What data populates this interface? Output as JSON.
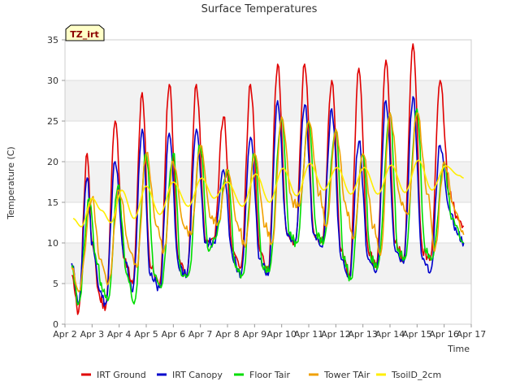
{
  "chart_data": {
    "type": "line",
    "title": "Surface Temperatures",
    "xlabel": "Time",
    "ylabel": "Temperature (C)",
    "site_label": "TZ_irt",
    "ylim": [
      0,
      35
    ],
    "xlim": [
      0,
      15
    ],
    "y_ticks": [
      0,
      5,
      10,
      15,
      20,
      25,
      30,
      35
    ],
    "x_ticks": [
      "Apr 2",
      "Apr 3",
      "Apr 4",
      "Apr 5",
      "Apr 6",
      "Apr 7",
      "Apr 8",
      "Apr 9",
      "Apr 10",
      "Apr 11",
      "Apr 12",
      "Apr 13",
      "Apr 14",
      "Apr 15",
      "Apr 16",
      "Apr 17"
    ],
    "grid": true,
    "legend_position": "bottom",
    "series": [
      {
        "name": "IRT Ground",
        "color": "#e00000",
        "x": [
          0.25,
          0.5,
          0.82,
          1.0,
          1.3,
          1.5,
          1.85,
          2.2,
          2.5,
          2.85,
          3.15,
          3.5,
          3.85,
          4.2,
          4.5,
          4.85,
          5.2,
          5.5,
          5.85,
          6.2,
          6.5,
          6.85,
          7.2,
          7.5,
          7.85,
          8.2,
          8.5,
          8.85,
          9.2,
          9.5,
          9.85,
          10.2,
          10.5,
          10.85,
          11.2,
          11.5,
          11.85,
          12.2,
          12.5,
          12.85,
          13.2,
          13.5,
          13.85,
          14.2,
          14.5,
          14.72
        ],
        "y": [
          6,
          1.5,
          21,
          10,
          3,
          2,
          25,
          8,
          5,
          28.5,
          7,
          5,
          29.5,
          8,
          6,
          29.5,
          10,
          10.5,
          25.5,
          9,
          7,
          29.5,
          9,
          6.5,
          32,
          11,
          10,
          32,
          11,
          10,
          30,
          9,
          6,
          31.5,
          9,
          7,
          32.5,
          10,
          8,
          34.5,
          9,
          8,
          30,
          16,
          13,
          12
        ]
      },
      {
        "name": "IRT Canopy",
        "color": "#0000cc",
        "x": [
          0.25,
          0.5,
          0.82,
          1.0,
          1.3,
          1.5,
          1.85,
          2.2,
          2.5,
          2.85,
          3.15,
          3.5,
          3.85,
          4.2,
          4.5,
          4.85,
          5.2,
          5.5,
          5.85,
          6.2,
          6.5,
          6.85,
          7.2,
          7.5,
          7.85,
          8.2,
          8.5,
          8.85,
          9.2,
          9.5,
          9.85,
          10.2,
          10.5,
          10.85,
          11.2,
          11.5,
          11.85,
          12.2,
          12.5,
          12.85,
          13.2,
          13.5,
          13.85,
          14.2,
          14.5,
          14.72
        ],
        "y": [
          7.5,
          2.5,
          18,
          10,
          4,
          2.5,
          20,
          8,
          4,
          24,
          6,
          4.5,
          23.5,
          7,
          6,
          24,
          10,
          10,
          19,
          8,
          6,
          23,
          8,
          6,
          27.5,
          11,
          10,
          27,
          11,
          9.5,
          26.5,
          8,
          5.5,
          22.5,
          8,
          6.5,
          27.5,
          9,
          7.5,
          28,
          8,
          6.5,
          22,
          14,
          11,
          10
        ]
      },
      {
        "name": "Floor Tair",
        "color": "#00dd00",
        "x": [
          0.25,
          0.5,
          0.9,
          1.15,
          1.4,
          1.6,
          1.95,
          2.3,
          2.55,
          3.0,
          3.3,
          3.55,
          4.0,
          4.3,
          4.55,
          5.0,
          5.3,
          5.55,
          6.0,
          6.3,
          6.55,
          7.0,
          7.3,
          7.55,
          8.0,
          8.3,
          8.55,
          9.0,
          9.3,
          9.55,
          10.0,
          10.3,
          10.55,
          11.0,
          11.3,
          11.55,
          12.0,
          12.3,
          12.55,
          13.0,
          13.3,
          13.55,
          14.0,
          14.3,
          14.72
        ],
        "y": [
          7,
          2.5,
          15.5,
          8,
          4,
          3,
          17,
          6,
          2.5,
          21,
          6,
          4.5,
          21,
          6,
          6,
          22,
          9,
          10.5,
          19,
          7,
          6,
          21,
          7,
          6.5,
          25.5,
          11,
          10,
          25,
          11,
          10,
          24,
          8,
          5.5,
          21,
          8,
          7,
          26,
          9,
          8,
          26.5,
          9,
          8,
          19.5,
          13,
          10
        ]
      },
      {
        "name": "Tower TAir",
        "color": "#f0a000",
        "x": [
          0.25,
          0.5,
          1.0,
          1.3,
          1.6,
          2.0,
          2.4,
          2.65,
          3.0,
          3.4,
          3.65,
          4.0,
          4.4,
          4.65,
          5.0,
          5.4,
          5.65,
          6.0,
          6.4,
          6.65,
          7.0,
          7.4,
          7.65,
          8.0,
          8.4,
          8.65,
          9.0,
          9.4,
          9.65,
          10.0,
          10.4,
          10.65,
          11.0,
          11.4,
          11.65,
          12.0,
          12.4,
          12.65,
          13.0,
          13.4,
          13.65,
          14.0,
          14.4,
          14.72
        ],
        "y": [
          7,
          4,
          15.5,
          8,
          5,
          16.5,
          9,
          7,
          21,
          12,
          9,
          20,
          12,
          11,
          22,
          13,
          12.5,
          19,
          12,
          9.5,
          21,
          12,
          10,
          25.5,
          15,
          14.5,
          25,
          16,
          12,
          24,
          14,
          10.5,
          21,
          12,
          8.5,
          26,
          15,
          13.5,
          26,
          16,
          9,
          20,
          14,
          11
        ]
      },
      {
        "name": "TsoilD_2cm",
        "color": "#ffee00",
        "x": [
          0.3,
          0.6,
          1.0,
          1.35,
          1.7,
          2.1,
          2.55,
          3.0,
          3.5,
          4.0,
          4.55,
          5.05,
          5.5,
          6.0,
          6.55,
          7.05,
          7.55,
          8.05,
          8.55,
          9.05,
          9.55,
          10.05,
          10.55,
          11.05,
          11.55,
          12.05,
          12.55,
          13.05,
          13.55,
          14.05,
          14.55,
          14.72
        ],
        "y": [
          13,
          12,
          15.5,
          14,
          12.5,
          16.5,
          13,
          17,
          13.5,
          17.5,
          14.5,
          18,
          15.5,
          17.5,
          14.5,
          18.5,
          15,
          19.2,
          15.8,
          19.8,
          16.5,
          19.3,
          16,
          19.3,
          16,
          19.6,
          16.2,
          20.2,
          16.5,
          19.5,
          18.3,
          18
        ]
      }
    ]
  }
}
